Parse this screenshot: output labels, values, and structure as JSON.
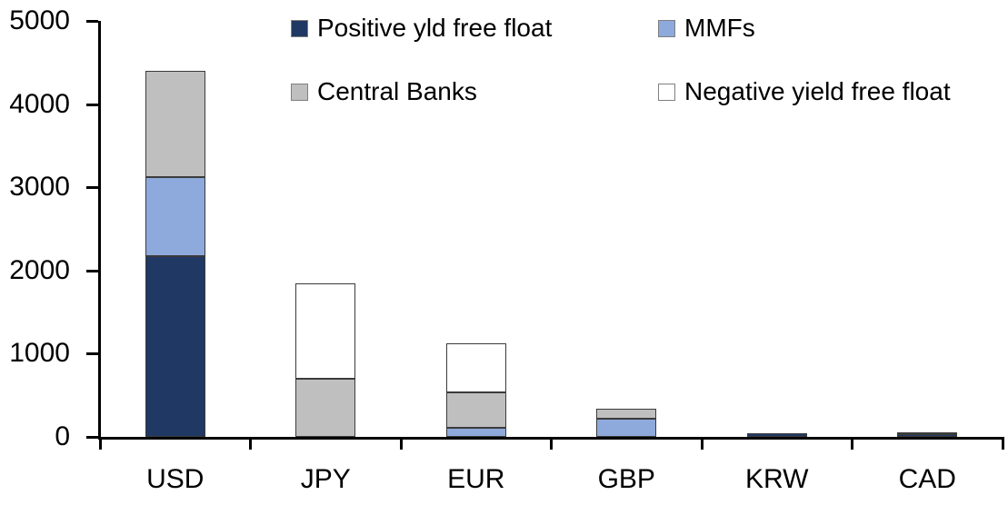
{
  "chart_data": {
    "type": "bar",
    "stacked": true,
    "title": "",
    "xlabel": "",
    "ylabel": "",
    "categories": [
      "USD",
      "JPY",
      "EUR",
      "GBP",
      "KRW",
      "CAD"
    ],
    "series": [
      {
        "name": "Positive yld free float",
        "color": "#1F3864",
        "values": [
          2170,
          0,
          0,
          0,
          45,
          30
        ]
      },
      {
        "name": "MMFs",
        "color": "#8EA9DB",
        "values": [
          950,
          0,
          110,
          220,
          0,
          0
        ]
      },
      {
        "name": "Central Banks",
        "color": "#BFBFBF",
        "values": [
          1280,
          700,
          430,
          115,
          0,
          30
        ]
      },
      {
        "name": "Negative yield free float",
        "color": "#FFFFFF",
        "values": [
          0,
          1150,
          580,
          0,
          0,
          0
        ]
      }
    ],
    "totals": {
      "USD": 4400,
      "JPY": 1850,
      "EUR": 1120,
      "GBP": 335,
      "KRW": 45,
      "CAD": 60
    },
    "ylim": [
      0,
      5000
    ],
    "yticks": [
      0,
      1000,
      2000,
      3000,
      4000,
      5000
    ],
    "grid": false,
    "legend_position": "top",
    "axis_color": "#000000",
    "segment_border_color": "#3b3b3b"
  }
}
